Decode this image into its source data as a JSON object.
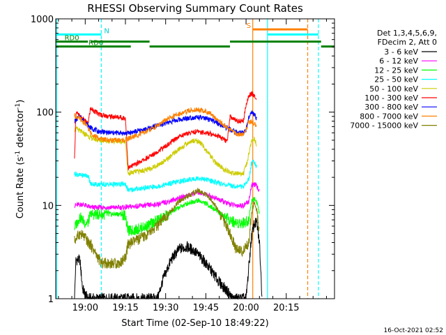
{
  "chart_data": {
    "type": "line",
    "title": "RHESSI Observing Summary Count Rates",
    "xlabel": "Start Time (02-Sep-10 18:49:22)",
    "ylabel_main": "Count Rate (s",
    "ylabel_sup": "-1",
    "ylabel_rest": " detector",
    "ylabel_close": ")",
    "y_scale": "log",
    "ylim": [
      1,
      1000
    ],
    "xlim_minutes": [
      0,
      104
    ],
    "x_ticks": [
      {
        "minute": 11,
        "label": "19:00"
      },
      {
        "minute": 26,
        "label": "19:15"
      },
      {
        "minute": 41,
        "label": "19:30"
      },
      {
        "minute": 56,
        "label": "19:45"
      },
      {
        "minute": 71,
        "label": "20:00"
      },
      {
        "minute": 86,
        "label": "20:15"
      }
    ],
    "y_ticks": [
      {
        "value": 1,
        "label": "1"
      },
      {
        "value": 10,
        "label": "10"
      },
      {
        "value": 100,
        "label": "100"
      },
      {
        "value": 1000,
        "label": "1000"
      }
    ],
    "legend_header": [
      "Det 1,3,4,5,6,9,",
      "FDecim 2, Att 0"
    ],
    "series": [
      {
        "name": "3 - 6 keV",
        "color": "#000000",
        "points": [
          [
            7,
            1.0
          ],
          [
            7.5,
            2.6
          ],
          [
            9,
            2.6
          ],
          [
            10,
            1.3
          ],
          [
            11,
            1.1
          ],
          [
            12,
            1.0
          ],
          [
            38,
            1.0
          ],
          [
            40,
            1.6
          ],
          [
            43,
            2.6
          ],
          [
            46,
            3.4
          ],
          [
            49,
            3.6
          ],
          [
            52,
            3.2
          ],
          [
            55,
            2.6
          ],
          [
            58,
            2.0
          ],
          [
            61,
            1.5
          ],
          [
            64,
            1.2
          ],
          [
            66,
            1.0
          ],
          [
            71,
            1.0
          ],
          [
            73,
            4.5
          ],
          [
            74,
            6.3
          ],
          [
            75,
            6.5
          ],
          [
            76,
            4.0
          ],
          [
            77,
            1.0
          ]
        ]
      },
      {
        "name": "6 - 12 keV",
        "color": "#ff00ff",
        "points": [
          [
            7,
            10
          ],
          [
            10,
            10.3
          ],
          [
            13,
            9.5
          ],
          [
            16,
            9.5
          ],
          [
            20,
            9.5
          ],
          [
            24,
            9.5
          ],
          [
            27,
            9.6
          ],
          [
            30,
            9.8
          ],
          [
            34,
            10
          ],
          [
            38,
            10.3
          ],
          [
            42,
            11
          ],
          [
            46,
            12
          ],
          [
            50,
            13
          ],
          [
            53,
            13.8
          ],
          [
            55,
            13.5
          ],
          [
            58,
            12.5
          ],
          [
            61,
            11.5
          ],
          [
            64,
            10.5
          ],
          [
            67,
            10
          ],
          [
            70,
            10
          ],
          [
            72,
            11
          ],
          [
            73,
            16
          ],
          [
            74,
            17
          ],
          [
            75,
            16
          ],
          [
            76,
            14
          ]
        ]
      },
      {
        "name": "12 - 25 keV",
        "color": "#00ff00",
        "points": [
          [
            7,
            5.8
          ],
          [
            9,
            7.5
          ],
          [
            11,
            6.5
          ],
          [
            12,
            6.5
          ],
          [
            13,
            8
          ],
          [
            16,
            8
          ],
          [
            20,
            8
          ],
          [
            24,
            8.1
          ],
          [
            26,
            7.8
          ],
          [
            27,
            5.3
          ],
          [
            30,
            5.5
          ],
          [
            34,
            6
          ],
          [
            38,
            7
          ],
          [
            42,
            8
          ],
          [
            46,
            9.5
          ],
          [
            50,
            10.8
          ],
          [
            53,
            11.3
          ],
          [
            56,
            10.5
          ],
          [
            59,
            9.2
          ],
          [
            62,
            8
          ],
          [
            65,
            7
          ],
          [
            67,
            6.5
          ],
          [
            70,
            6.5
          ],
          [
            72,
            7
          ],
          [
            73,
            11
          ],
          [
            74,
            12
          ],
          [
            75,
            11
          ],
          [
            76,
            8
          ]
        ]
      },
      {
        "name": "25 - 50 keV",
        "color": "#00ffff",
        "points": [
          [
            7,
            22
          ],
          [
            9,
            21
          ],
          [
            11,
            21
          ],
          [
            12,
            21
          ],
          [
            13,
            17
          ],
          [
            16,
            16.8
          ],
          [
            20,
            16.8
          ],
          [
            24,
            16.8
          ],
          [
            26,
            17
          ],
          [
            27,
            14.5
          ],
          [
            30,
            15
          ],
          [
            34,
            15.5
          ],
          [
            38,
            16
          ],
          [
            42,
            17
          ],
          [
            46,
            18
          ],
          [
            50,
            19
          ],
          [
            53,
            19.5
          ],
          [
            56,
            19
          ],
          [
            59,
            18
          ],
          [
            62,
            17
          ],
          [
            65,
            16.3
          ],
          [
            68,
            16
          ],
          [
            70,
            16
          ],
          [
            72,
            19
          ],
          [
            73,
            28
          ],
          [
            74,
            30
          ],
          [
            75,
            26
          ]
        ]
      },
      {
        "name": "50 - 100 keV",
        "color": "#cccc00",
        "points": [
          [
            7,
            65
          ],
          [
            8,
            66
          ],
          [
            10,
            60
          ],
          [
            12,
            56
          ],
          [
            13,
            53
          ],
          [
            16,
            50
          ],
          [
            20,
            49
          ],
          [
            24,
            49
          ],
          [
            26,
            48
          ],
          [
            27,
            22
          ],
          [
            30,
            23
          ],
          [
            34,
            24
          ],
          [
            38,
            27
          ],
          [
            42,
            32
          ],
          [
            46,
            40
          ],
          [
            50,
            48
          ],
          [
            52,
            50
          ],
          [
            54,
            47
          ],
          [
            57,
            36
          ],
          [
            60,
            28
          ],
          [
            63,
            24
          ],
          [
            66,
            22
          ],
          [
            68,
            22
          ],
          [
            70,
            22
          ],
          [
            71,
            26
          ],
          [
            72,
            35
          ],
          [
            73,
            48
          ],
          [
            74,
            52
          ],
          [
            75,
            44
          ]
        ]
      },
      {
        "name": "100 - 300 keV",
        "color": "#ff0000",
        "points": [
          [
            7,
            30
          ],
          [
            7.5,
            100
          ],
          [
            9,
            90
          ],
          [
            11,
            80
          ],
          [
            12,
            75
          ],
          [
            13,
            110
          ],
          [
            16,
            95
          ],
          [
            20,
            90
          ],
          [
            24,
            88
          ],
          [
            26,
            86
          ],
          [
            27,
            25
          ],
          [
            30,
            28
          ],
          [
            34,
            32
          ],
          [
            38,
            38
          ],
          [
            42,
            45
          ],
          [
            46,
            55
          ],
          [
            50,
            60
          ],
          [
            53,
            62
          ],
          [
            56,
            60
          ],
          [
            59,
            58
          ],
          [
            61,
            55
          ],
          [
            63,
            50
          ],
          [
            64,
            48
          ],
          [
            65,
            90
          ],
          [
            67,
            82
          ],
          [
            69,
            80
          ],
          [
            70,
            80
          ],
          [
            71,
            120
          ],
          [
            72,
            150
          ],
          [
            73,
            158
          ],
          [
            74,
            152
          ],
          [
            75,
            130
          ]
        ]
      },
      {
        "name": "300 - 800 keV",
        "color": "#0000ff",
        "points": [
          [
            7,
            80
          ],
          [
            9,
            90
          ],
          [
            11,
            78
          ],
          [
            12,
            72
          ],
          [
            13,
            68
          ],
          [
            16,
            62
          ],
          [
            20,
            60
          ],
          [
            24,
            60
          ],
          [
            26,
            59
          ],
          [
            27,
            60
          ],
          [
            30,
            62
          ],
          [
            34,
            66
          ],
          [
            38,
            72
          ],
          [
            42,
            78
          ],
          [
            46,
            83
          ],
          [
            50,
            87
          ],
          [
            53,
            88
          ],
          [
            56,
            85
          ],
          [
            59,
            80
          ],
          [
            62,
            72
          ],
          [
            65,
            65
          ],
          [
            68,
            60
          ],
          [
            70,
            60
          ],
          [
            71,
            65
          ],
          [
            72,
            90
          ],
          [
            73,
            100
          ],
          [
            74,
            95
          ],
          [
            75,
            85
          ]
        ]
      },
      {
        "name": "800 - 7000 keV",
        "color": "#ff8000",
        "points": [
          [
            7,
            92
          ],
          [
            9,
            85
          ],
          [
            11,
            75
          ],
          [
            12,
            68
          ],
          [
            13,
            60
          ],
          [
            16,
            52
          ],
          [
            20,
            50
          ],
          [
            24,
            50
          ],
          [
            26,
            50
          ],
          [
            27,
            52
          ],
          [
            30,
            56
          ],
          [
            34,
            62
          ],
          [
            38,
            72
          ],
          [
            42,
            85
          ],
          [
            46,
            96
          ],
          [
            50,
            104
          ],
          [
            53,
            107
          ],
          [
            56,
            102
          ],
          [
            59,
            90
          ],
          [
            62,
            76
          ],
          [
            65,
            64
          ],
          [
            68,
            58
          ],
          [
            70,
            58
          ],
          [
            71,
            65
          ],
          [
            72,
            78
          ],
          [
            73,
            80
          ],
          [
            74,
            76
          ],
          [
            75,
            68
          ]
        ]
      },
      {
        "name": "7000 - 15000 keV",
        "color": "#808000",
        "points": [
          [
            7,
            4.2
          ],
          [
            9,
            5
          ],
          [
            11,
            4.5
          ],
          [
            12,
            4.0
          ],
          [
            13,
            3.8
          ],
          [
            15,
            3.0
          ],
          [
            17,
            2.4
          ],
          [
            20,
            2.4
          ],
          [
            24,
            2.4
          ],
          [
            26,
            2.8
          ],
          [
            27,
            3.8
          ],
          [
            30,
            4.2
          ],
          [
            34,
            4.8
          ],
          [
            38,
            6
          ],
          [
            42,
            8
          ],
          [
            46,
            11
          ],
          [
            50,
            13
          ],
          [
            53,
            14.5
          ],
          [
            56,
            13
          ],
          [
            59,
            10.5
          ],
          [
            62,
            7.5
          ],
          [
            65,
            5
          ],
          [
            67,
            3.5
          ],
          [
            70,
            3.2
          ],
          [
            72,
            4
          ],
          [
            73,
            8
          ],
          [
            74,
            11
          ],
          [
            75,
            9
          ],
          [
            76,
            5
          ]
        ]
      }
    ],
    "markers": {
      "night_vlines": [
        {
          "minute": 0.3,
          "style": "solid",
          "color": "#00ffff"
        },
        {
          "minute": 17,
          "style": "dashed",
          "color": "#00ffff"
        },
        {
          "minute": 79,
          "style": "solid",
          "color": "#00ffff"
        },
        {
          "minute": 98,
          "style": "dashed",
          "color": "#00ffff"
        }
      ],
      "saa_vlines": [
        {
          "minute": 73.5,
          "style": "solid",
          "color": "#ff8000"
        },
        {
          "minute": 94,
          "style": "dashed",
          "color": "#ff8000"
        }
      ],
      "night_bars": [
        {
          "from": 0,
          "to": 17,
          "value": 680,
          "label": "N",
          "label_minute": 19
        },
        {
          "from": 79,
          "to": 98,
          "value": 680
        }
      ],
      "saa_bars": [
        {
          "from": 73.5,
          "to": 94,
          "value": 770,
          "label": "S",
          "label_minute": 72
        }
      ],
      "decim_bars_upper": [
        {
          "from": 0,
          "to": 12,
          "value": 570,
          "label": "RD0",
          "label_minute": 6
        },
        {
          "from": 13,
          "to": 35,
          "value": 570
        },
        {
          "from": 65,
          "to": 99,
          "value": 570
        }
      ],
      "decim_bars_lower": [
        {
          "from": 0,
          "to": 13,
          "value": 505
        },
        {
          "from": 13,
          "to": 28,
          "value": 505,
          "label": "RD6",
          "label_minute": 15
        },
        {
          "from": 35,
          "to": 65,
          "value": 505
        },
        {
          "from": 99,
          "to": 104,
          "value": 505
        }
      ]
    }
  },
  "footer": {
    "timestamp": "16-Oct-2021 02:52"
  }
}
